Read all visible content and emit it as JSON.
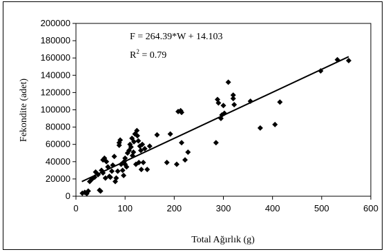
{
  "chart_data": {
    "type": "scatter",
    "title": "",
    "xlabel": "Total Ağırlık (g)",
    "ylabel": "Fekondite (adet)",
    "xlim": [
      0,
      600
    ],
    "ylim": [
      0,
      200000
    ],
    "x_ticks": [
      0,
      100,
      200,
      300,
      400,
      500,
      600
    ],
    "y_ticks": [
      0,
      20000,
      40000,
      60000,
      80000,
      100000,
      120000,
      140000,
      160000,
      180000,
      200000
    ],
    "x_tick_labels": [
      "0",
      "100",
      "200",
      "300",
      "400",
      "500",
      "600"
    ],
    "y_tick_labels": [
      "0",
      "20000",
      "40000",
      "60000",
      "80000",
      "100000",
      "120000",
      "140000",
      "160000",
      "180000",
      "200000"
    ],
    "grid": false,
    "legend": "none",
    "marker": "diamond",
    "marker_color": "#000000",
    "annotations": {
      "equation": "F = 264.39*W + 14.103",
      "r_squared_prefix": "R",
      "r_squared_exp": "2",
      "r_squared_suffix": " = 0.79"
    },
    "trendline": {
      "x": [
        12,
        555
      ],
      "y": [
        17000,
        161500
      ]
    },
    "series": [
      {
        "points": [
          [
            13,
            3500
          ],
          [
            18,
            4500
          ],
          [
            22,
            3000
          ],
          [
            25,
            6000
          ],
          [
            28,
            17000
          ],
          [
            33,
            20000
          ],
          [
            38,
            22000
          ],
          [
            40,
            28000
          ],
          [
            45,
            25000
          ],
          [
            48,
            7000
          ],
          [
            50,
            6000
          ],
          [
            52,
            30000
          ],
          [
            55,
            27000
          ],
          [
            55,
            42000
          ],
          [
            58,
            44000
          ],
          [
            60,
            21000
          ],
          [
            62,
            40000
          ],
          [
            65,
            34000
          ],
          [
            68,
            23000
          ],
          [
            70,
            22000
          ],
          [
            73,
            29000
          ],
          [
            75,
            36000
          ],
          [
            78,
            46000
          ],
          [
            80,
            17000
          ],
          [
            82,
            21000
          ],
          [
            85,
            29000
          ],
          [
            88,
            62000
          ],
          [
            88,
            59000
          ],
          [
            90,
            65000
          ],
          [
            92,
            37000
          ],
          [
            95,
            30000
          ],
          [
            97,
            24000
          ],
          [
            98,
            40000
          ],
          [
            100,
            37000
          ],
          [
            100,
            44000
          ],
          [
            103,
            34000
          ],
          [
            105,
            50000
          ],
          [
            108,
            53000
          ],
          [
            110,
            60000
          ],
          [
            112,
            57000
          ],
          [
            114,
            67000
          ],
          [
            115,
            47000
          ],
          [
            117,
            51000
          ],
          [
            118,
            63000
          ],
          [
            120,
            72000
          ],
          [
            122,
            37000
          ],
          [
            124,
            76000
          ],
          [
            125,
            70000
          ],
          [
            127,
            64000
          ],
          [
            128,
            39000
          ],
          [
            130,
            58000
          ],
          [
            132,
            53000
          ],
          [
            133,
            31000
          ],
          [
            135,
            60000
          ],
          [
            137,
            39000
          ],
          [
            140,
            55000
          ],
          [
            145,
            31000
          ],
          [
            150,
            58000
          ],
          [
            165,
            71000
          ],
          [
            185,
            39000
          ],
          [
            192,
            72000
          ],
          [
            205,
            37000
          ],
          [
            208,
            98000
          ],
          [
            213,
            99000
          ],
          [
            215,
            97000
          ],
          [
            215,
            62000
          ],
          [
            222,
            42000
          ],
          [
            228,
            51000
          ],
          [
            285,
            62000
          ],
          [
            288,
            112000
          ],
          [
            290,
            108000
          ],
          [
            295,
            90000
          ],
          [
            297,
            94000
          ],
          [
            300,
            105000
          ],
          [
            302,
            96000
          ],
          [
            310,
            132000
          ],
          [
            320,
            117000
          ],
          [
            320,
            113000
          ],
          [
            322,
            106000
          ],
          [
            355,
            110000
          ],
          [
            375,
            79000
          ],
          [
            405,
            83000
          ],
          [
            415,
            109000
          ],
          [
            498,
            145000
          ],
          [
            532,
            158000
          ],
          [
            555,
            157000
          ]
        ]
      }
    ]
  }
}
